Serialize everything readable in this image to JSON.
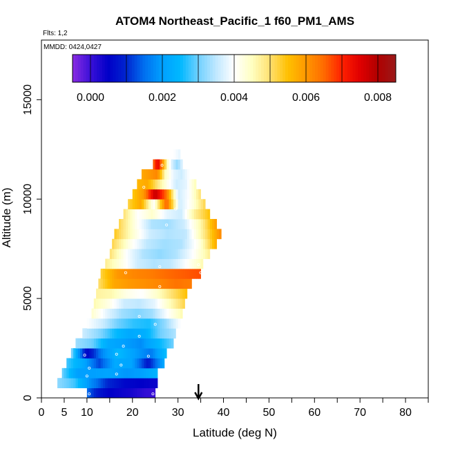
{
  "chart_data": {
    "type": "heatmap",
    "title": "ATOM4 Northeast_Pacific_1 f60_PM1_AMS",
    "notes": {
      "flights": "Flts: 1,2",
      "dates": "MMDD: 0424,0427"
    },
    "xlabel": "Latitude (deg N)",
    "ylabel": "Altitude (m)",
    "xlim": [
      0,
      85
    ],
    "ylim": [
      0,
      18000
    ],
    "x_ticks": [
      0,
      5,
      10,
      20,
      30,
      40,
      50,
      60,
      70,
      80
    ],
    "y_ticks": [
      0,
      5000,
      10000,
      15000
    ],
    "colorbar": {
      "range": [
        -0.0005,
        0.0085
      ],
      "tick_values": [
        0,
        0.002,
        0.004,
        0.006,
        0.008
      ],
      "tick_labels": [
        "0.000",
        "0.002",
        "0.004",
        "0.006",
        "0.008"
      ],
      "stops": [
        {
          "v": -0.0005,
          "color": "#8a2be2"
        },
        {
          "v": 0.0,
          "color": "#3a10d8"
        },
        {
          "v": 0.0005,
          "color": "#0000c8"
        },
        {
          "v": 0.001,
          "color": "#0026d0"
        },
        {
          "v": 0.0015,
          "color": "#0070f0"
        },
        {
          "v": 0.002,
          "color": "#00a0ff"
        },
        {
          "v": 0.0025,
          "color": "#00b8ff"
        },
        {
          "v": 0.003,
          "color": "#70d0ff"
        },
        {
          "v": 0.0035,
          "color": "#c0e8ff"
        },
        {
          "v": 0.004,
          "color": "#ffffff"
        },
        {
          "v": 0.0045,
          "color": "#ffffc0"
        },
        {
          "v": 0.005,
          "color": "#ffe070"
        },
        {
          "v": 0.0055,
          "color": "#ffc000"
        },
        {
          "v": 0.006,
          "color": "#ff9800"
        },
        {
          "v": 0.0065,
          "color": "#ff6a00"
        },
        {
          "v": 0.007,
          "color": "#ff2000"
        },
        {
          "v": 0.0075,
          "color": "#e00000"
        },
        {
          "v": 0.008,
          "color": "#b00000"
        },
        {
          "v": 0.0085,
          "color": "#9a1a1a"
        }
      ]
    },
    "layers": [
      {
        "alt": 250,
        "lat_min": 10.0,
        "lat_max": 25.0,
        "values": [
          0.0015,
          0.0008,
          0.0005,
          0.0004,
          0.0003,
          0.0001,
          0.0
        ]
      },
      {
        "alt": 750,
        "lat_min": 3.5,
        "lat_max": 25.5,
        "values": [
          0.0032,
          0.0028,
          0.0018,
          0.001,
          0.0006,
          0.0005,
          0.0004
        ]
      },
      {
        "alt": 1250,
        "lat_min": 4.5,
        "lat_max": 25.5,
        "values": [
          0.003,
          0.002,
          0.002,
          0.0021,
          0.0019,
          0.002,
          0.0024
        ]
      },
      {
        "alt": 1750,
        "lat_min": 5.5,
        "lat_max": 27.0,
        "values": [
          0.0028,
          0.0022,
          0.0012,
          0.0022,
          0.0021,
          0.0008,
          0.0022
        ]
      },
      {
        "alt": 2250,
        "lat_min": 6.5,
        "lat_max": 27.5,
        "values": [
          0.0032,
          0.0005,
          0.0018,
          0.0025,
          0.002,
          0.0016,
          0.0026
        ]
      },
      {
        "alt": 2750,
        "lat_min": 7.5,
        "lat_max": 29.0,
        "values": [
          0.0033,
          0.003,
          0.0022,
          0.002,
          0.0018,
          0.0024,
          0.003
        ]
      },
      {
        "alt": 3250,
        "lat_min": 9.0,
        "lat_max": 29.5,
        "values": [
          0.0036,
          0.0032,
          0.0026,
          0.0022,
          0.0023,
          0.003,
          0.0034
        ]
      },
      {
        "alt": 3750,
        "lat_min": 10.0,
        "lat_max": 30.5,
        "values": [
          0.004,
          0.0036,
          0.003,
          0.0027,
          0.0026,
          0.0032,
          0.004
        ]
      },
      {
        "alt": 4250,
        "lat_min": 11.0,
        "lat_max": 31.0,
        "values": [
          0.0044,
          0.0038,
          0.0033,
          0.0031,
          0.0033,
          0.004,
          0.0046
        ]
      },
      {
        "alt": 4750,
        "lat_min": 11.5,
        "lat_max": 31.5,
        "values": [
          0.0046,
          0.0042,
          0.0036,
          0.0035,
          0.0038,
          0.0045,
          0.0052
        ]
      },
      {
        "alt": 5250,
        "lat_min": 12.0,
        "lat_max": 32.0,
        "values": [
          0.0047,
          0.0046,
          0.0042,
          0.004,
          0.0044,
          0.005,
          0.0055
        ]
      },
      {
        "alt": 5750,
        "lat_min": 12.5,
        "lat_max": 33.0,
        "values": [
          0.005,
          0.0058,
          0.006,
          0.0061,
          0.0062,
          0.0064,
          0.0063
        ]
      },
      {
        "alt": 6250,
        "lat_min": 13.0,
        "lat_max": 35.0,
        "values": [
          0.0052,
          0.006,
          0.0062,
          0.0063,
          0.0065,
          0.0066,
          0.0067
        ]
      },
      {
        "alt": 6750,
        "lat_min": 14.0,
        "lat_max": 35.5,
        "values": [
          0.0048,
          0.0042,
          0.0036,
          0.0034,
          0.0035,
          0.004,
          0.0046
        ]
      },
      {
        "alt": 7250,
        "lat_min": 15.0,
        "lat_max": 37.0,
        "values": [
          0.005,
          0.004,
          0.0034,
          0.0032,
          0.0034,
          0.004,
          0.0048
        ]
      },
      {
        "alt": 7750,
        "lat_min": 15.5,
        "lat_max": 38.5,
        "values": [
          0.0052,
          0.0042,
          0.0035,
          0.0033,
          0.0034,
          0.0042,
          0.0058
        ]
      },
      {
        "alt": 8250,
        "lat_min": 16.0,
        "lat_max": 39.5,
        "values": [
          0.0054,
          0.0044,
          0.0036,
          0.0034,
          0.0035,
          0.0048,
          0.0062
        ]
      },
      {
        "alt": 8750,
        "lat_min": 17.0,
        "lat_max": 38.5,
        "values": [
          0.0052,
          0.0042,
          0.0034,
          0.0033,
          0.0036,
          0.0046,
          0.006
        ]
      },
      {
        "alt": 9250,
        "lat_min": 18.0,
        "lat_max": 37.0,
        "values": [
          0.005,
          0.004,
          0.0044,
          0.0038,
          0.0036,
          0.0048,
          0.0055
        ]
      },
      {
        "alt": 9750,
        "lat_min": 19.0,
        "lat_max": 36.0,
        "values": [
          0.0052,
          0.0058,
          0.004,
          0.0066,
          0.0036,
          0.0042,
          0.0052
        ]
      },
      {
        "alt": 10250,
        "lat_min": 20.0,
        "lat_max": 35.0,
        "values": [
          0.0054,
          0.006,
          0.0078,
          0.0064,
          0.0036,
          0.004,
          0.005
        ]
      },
      {
        "alt": 10750,
        "lat_min": 21.0,
        "lat_max": 34.0,
        "values": [
          0.0056,
          0.0058,
          0.005,
          0.0042,
          0.0036,
          0.0038,
          0.0046
        ]
      },
      {
        "alt": 11250,
        "lat_min": 22.0,
        "lat_max": 32.5,
        "values": [
          0.0058,
          0.006,
          0.0062,
          0.0045,
          0.0038,
          0.0036,
          0.004
        ]
      },
      {
        "alt": 11750,
        "lat_min": 24.5,
        "lat_max": 31.0,
        "values": [
          0.0064,
          0.0075,
          0.006,
          0.0044,
          0.0036,
          0.0032,
          0.0038
        ]
      },
      {
        "alt": 12250,
        "lat_min": 29.0,
        "lat_max": 30.5,
        "values": [
          0.004,
          0.0038
        ]
      }
    ],
    "sample_points": [
      {
        "lat": 10.5,
        "alt": 200
      },
      {
        "lat": 24.5,
        "alt": 200
      },
      {
        "lat": 10.0,
        "alt": 1100
      },
      {
        "lat": 16.5,
        "alt": 1200
      },
      {
        "lat": 10.5,
        "alt": 1500
      },
      {
        "lat": 17.5,
        "alt": 1650
      },
      {
        "lat": 9.5,
        "alt": 2150
      },
      {
        "lat": 16.5,
        "alt": 2200
      },
      {
        "lat": 23.5,
        "alt": 2100
      },
      {
        "lat": 18.0,
        "alt": 2600
      },
      {
        "lat": 21.5,
        "alt": 3100
      },
      {
        "lat": 25.0,
        "alt": 3700
      },
      {
        "lat": 21.5,
        "alt": 4100
      },
      {
        "lat": 26.0,
        "alt": 5600
      },
      {
        "lat": 35.0,
        "alt": 6300
      },
      {
        "lat": 18.5,
        "alt": 6300
      },
      {
        "lat": 26.0,
        "alt": 6600
      },
      {
        "lat": 34.5,
        "alt": 6700
      },
      {
        "lat": 27.5,
        "alt": 8700
      },
      {
        "lat": 29.5,
        "alt": 9500
      },
      {
        "lat": 22.5,
        "alt": 10600
      },
      {
        "lat": 26.5,
        "alt": 11700
      }
    ],
    "marker": {
      "lat": 34.5
    }
  }
}
